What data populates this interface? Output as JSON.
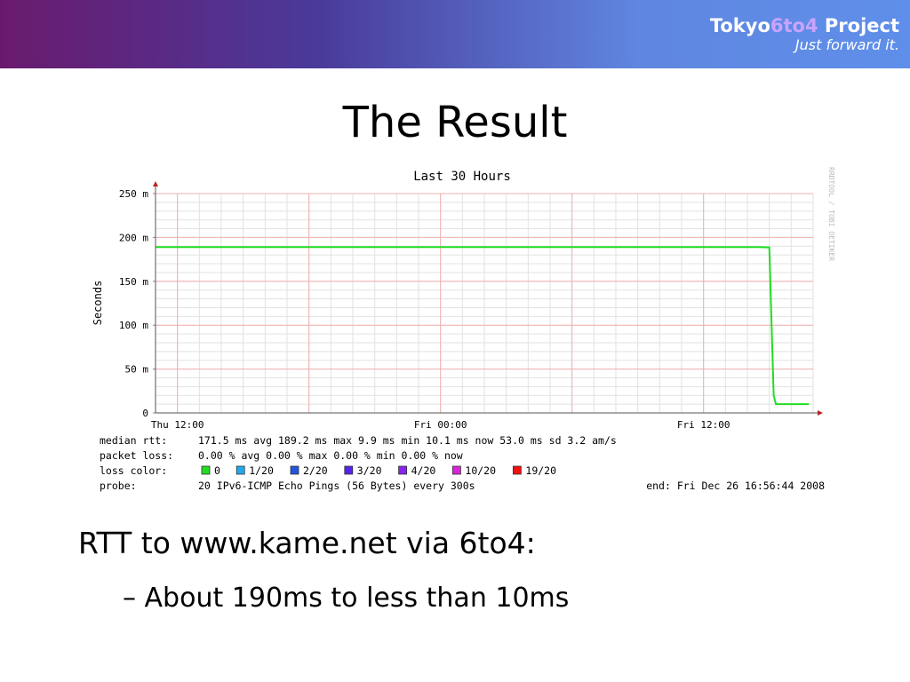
{
  "header": {
    "brand_part1": "Tokyo",
    "brand_part2": "6to4",
    "brand_part3": " Project",
    "tagline": "Just forward it."
  },
  "slide": {
    "title": "The Result",
    "bullets": [
      {
        "text": "RTT to www.kame.net via 6to4:"
      },
      {
        "text": "– About 190ms to less than 10ms"
      }
    ]
  },
  "chart_data": {
    "type": "line",
    "title": "Last 30 Hours",
    "ylabel": "Seconds",
    "xlabel": "",
    "watermark": "RRDTOOL / TOBI OETIKER",
    "ylim": [
      0,
      0.25
    ],
    "y_ticks": [
      {
        "value": 0,
        "label": "0"
      },
      {
        "value": 0.05,
        "label": "50 m"
      },
      {
        "value": 0.1,
        "label": "100 m"
      },
      {
        "value": 0.15,
        "label": "150 m"
      },
      {
        "value": 0.2,
        "label": "200 m"
      },
      {
        "value": 0.25,
        "label": "250 m"
      }
    ],
    "x_ticks": [
      {
        "hour": 0,
        "label": "Thu 12:00"
      },
      {
        "hour": 12,
        "label": "Fri 00:00"
      },
      {
        "hour": 24,
        "label": "Fri 12:00"
      }
    ],
    "xlim_hours": [
      -1,
      29
    ],
    "grid": true,
    "series": [
      {
        "color": "#22dd22",
        "points": [
          [
            -1,
            0.189
          ],
          [
            4,
            0.189
          ],
          [
            8,
            0.189
          ],
          [
            12,
            0.189
          ],
          [
            16,
            0.189
          ],
          [
            20,
            0.189
          ],
          [
            24,
            0.189
          ],
          [
            26.5,
            0.189
          ],
          [
            27,
            0.1887
          ],
          [
            27.2,
            0.02
          ],
          [
            27.3,
            0.01
          ],
          [
            28.8,
            0.01
          ]
        ]
      }
    ],
    "stats": [
      {
        "label": "median rtt:",
        "values": "171.5 ms avg   189.2 ms max   9.9 ms min   10.1 ms now   53.0 ms sd   3.2    am/s"
      },
      {
        "label": "packet loss:",
        "values": "0.00 % avg   0.00 % max   0.00 % min   0.00 % now"
      },
      {
        "label": "probe:",
        "values": "20 IPv6-ICMP Echo Pings (56 Bytes) every 300s",
        "end": "end: Fri Dec 26 16:56:44 2008"
      }
    ],
    "loss_color_label": "loss color:",
    "loss_legend": [
      {
        "label": "0",
        "color": "#22dd22"
      },
      {
        "label": "1/20",
        "color": "#22aaee"
      },
      {
        "label": "2/20",
        "color": "#2255dd"
      },
      {
        "label": "3/20",
        "color": "#5522ee"
      },
      {
        "label": "4/20",
        "color": "#8822ee"
      },
      {
        "label": "10/20",
        "color": "#dd22dd"
      },
      {
        "label": "19/20",
        "color": "#ee1111"
      }
    ]
  }
}
